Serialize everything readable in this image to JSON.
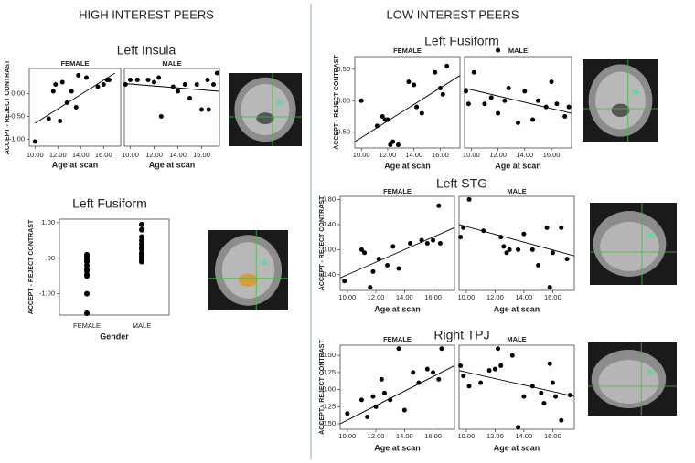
{
  "sections": [
    "HIGH INTEREST PEERS",
    "LOW INTEREST PEERS"
  ],
  "chart_data": [
    {
      "type": "scatter",
      "title": "Left Insula",
      "ylabel": "ACCEPT - REJECT CONTRAST",
      "xlabel": "Age at scan",
      "color": "#000000",
      "xlim": [
        9.5,
        17.5
      ],
      "xticks": [
        {
          "value": 10,
          "label": "10.00"
        },
        {
          "value": 12,
          "label": "12.00"
        },
        {
          "value": 14,
          "label": "14.00"
        },
        {
          "value": 16,
          "label": "16.00"
        }
      ],
      "ylim": [
        -1.15,
        0.55
      ],
      "yticks": [
        {
          "value": -1,
          "label": "-1.00"
        },
        {
          "value": -0.5,
          "label": "-0.50"
        },
        {
          "value": 0,
          "label": "0.00"
        }
      ],
      "panels": [
        {
          "name": "FEMALE",
          "x": [
            10,
            11.2,
            11.6,
            11.8,
            12.2,
            12.4,
            12.8,
            13.2,
            13.6,
            13.8,
            14.5,
            15.5,
            16,
            16.3,
            16.5
          ],
          "y": [
            -1.05,
            -0.55,
            0.05,
            0.2,
            -0.6,
            0.25,
            -0.2,
            0.05,
            -0.3,
            0.4,
            0.35,
            0.15,
            0.2,
            0.3,
            0.3
          ],
          "fit": {
            "x": [
              10,
              17
            ],
            "y": [
              -0.65,
              0.45
            ]
          }
        },
        {
          "name": "MALE",
          "x": [
            9.6,
            10,
            10.6,
            11.5,
            12,
            12.4,
            12.6,
            13.6,
            14,
            14.6,
            15,
            15.6,
            16,
            16.5,
            16.6,
            17,
            17.3
          ],
          "y": [
            0.2,
            0.3,
            0.3,
            0.3,
            0.25,
            0.35,
            -0.5,
            0.15,
            0.05,
            0.2,
            -0.1,
            0.2,
            -0.35,
            0.3,
            -0.35,
            0.2,
            0.45
          ],
          "fit": {
            "x": [
              9.5,
              17.5
            ],
            "y": [
              0.22,
              0.05
            ]
          }
        }
      ]
    },
    {
      "type": "strip",
      "title": "Left Fusiform",
      "ylabel": "ACCEPT - REJECT CONTRAST",
      "xlabel": "Gender",
      "color": "#000000",
      "categories": [
        "FEMALE",
        "MALE"
      ],
      "values": [
        [
          0.1,
          0.05,
          0,
          -0.05,
          -0.1,
          -0.2,
          -0.3,
          -0.35,
          -0.45,
          -0.5,
          -1,
          -1.55
        ],
        [
          0.95,
          0.8,
          0.6,
          0.5,
          0.4,
          0.3,
          0.25,
          0.15,
          0.1,
          0.05,
          0,
          -0.05,
          -0.1
        ]
      ],
      "ylim": [
        -1.6,
        1.1
      ],
      "yticks": [
        {
          "value": -1,
          "label": "-1.00"
        },
        {
          "value": 0,
          "label": ".00"
        },
        {
          "value": 1,
          "label": "1.00"
        }
      ]
    },
    {
      "type": "scatter",
      "title": "Left Fusiform",
      "ylabel": "ACCEPT - REJECT CONTRAST",
      "xlabel": "Age at scan",
      "color": "#000000",
      "xlim": [
        9.5,
        17.5
      ],
      "xticks": [
        {
          "value": 10,
          "label": "10.00"
        },
        {
          "value": 12,
          "label": "12.00"
        },
        {
          "value": 14,
          "label": "14.00"
        },
        {
          "value": 16,
          "label": "16.00"
        }
      ],
      "ylim": [
        -0.75,
        0.7
      ],
      "yticks": [
        {
          "value": -0.5,
          "label": "-0.50"
        },
        {
          "value": 0,
          "label": "0.00"
        },
        {
          "value": 0.5,
          "label": "0.50"
        }
      ],
      "panels": [
        {
          "name": "FEMALE",
          "x": [
            10,
            11.2,
            11.6,
            11.8,
            12,
            12.2,
            12.4,
            12.8,
            13.6,
            14,
            14.2,
            14.6,
            15.6,
            16,
            16.2,
            16.5
          ],
          "y": [
            0,
            -0.4,
            -0.25,
            -0.3,
            -0.3,
            -0.7,
            -0.65,
            -0.7,
            0.3,
            0.25,
            -0.1,
            -0.2,
            0.45,
            0.2,
            0.1,
            0.55
          ],
          "fit": {
            "x": [
              9.5,
              17.5
            ],
            "y": [
              -0.65,
              0.4
            ]
          }
        },
        {
          "name": "MALE",
          "x": [
            9.6,
            9.8,
            10.2,
            11,
            11.5,
            12,
            12,
            12.5,
            12.8,
            13.5,
            14,
            14.6,
            15,
            15.6,
            16,
            16.4,
            17,
            17.3
          ],
          "y": [
            0.15,
            -0.05,
            0.45,
            -0.05,
            0.05,
            0.8,
            -0.2,
            0,
            0.2,
            -0.35,
            0.15,
            -0.3,
            0,
            -0.1,
            0.3,
            -0.05,
            -0.25,
            -0.1
          ],
          "fit": {
            "x": [
              9.5,
              17.5
            ],
            "y": [
              0.2,
              -0.2
            ]
          }
        }
      ]
    },
    {
      "type": "scatter",
      "title": "Left STG",
      "ylabel": "ACCEPT - REJECT CONTRAST",
      "xlabel": "Age at scan",
      "color": "#000000",
      "xlim": [
        9.5,
        17.5
      ],
      "xticks": [
        {
          "value": 10,
          "label": "10.00"
        },
        {
          "value": 12,
          "label": "12.00"
        },
        {
          "value": 14,
          "label": "14.00"
        },
        {
          "value": 16,
          "label": "16.00"
        }
      ],
      "ylim": [
        -0.65,
        0.85
      ],
      "yticks": [
        {
          "value": -0.4,
          "label": "-0.40"
        },
        {
          "value": 0,
          "label": "0.00"
        },
        {
          "value": 0.4,
          "label": "0.40"
        },
        {
          "value": 0.8,
          "label": "0.80"
        }
      ],
      "panels": [
        {
          "name": "FEMALE",
          "x": [
            9.8,
            11,
            11.2,
            11.6,
            11.8,
            12.2,
            12.8,
            13.2,
            13.6,
            14.4,
            15.2,
            15.6,
            16,
            16.4,
            16.5
          ],
          "y": [
            -0.5,
            0,
            -0.05,
            -0.6,
            -0.35,
            -0.15,
            -0.25,
            0.05,
            -0.3,
            0.1,
            0.15,
            0.1,
            0.15,
            0.7,
            0.1
          ],
          "fit": {
            "x": [
              9.5,
              17.5
            ],
            "y": [
              -0.45,
              0.35
            ]
          }
        },
        {
          "name": "MALE",
          "x": [
            9.6,
            9.8,
            10.2,
            11.2,
            12.4,
            12.6,
            12.8,
            13,
            13.6,
            14,
            14.6,
            15,
            15.6,
            15.8,
            16,
            16.6,
            17
          ],
          "y": [
            0.2,
            0.35,
            0.8,
            0.3,
            0.2,
            0.05,
            -0.05,
            0,
            0,
            0.25,
            0,
            -0.25,
            0.35,
            -0.6,
            -0.05,
            0.35,
            -0.15
          ],
          "fit": {
            "x": [
              9.5,
              17.5
            ],
            "y": [
              0.4,
              -0.1
            ]
          }
        }
      ]
    },
    {
      "type": "scatter",
      "title": "Right TPJ",
      "ylabel": "ACCEPT - REJECT CONTRAST",
      "xlabel": "Age at scan",
      "color": "#000000",
      "xlim": [
        9.5,
        17.5
      ],
      "xticks": [
        {
          "value": 10,
          "label": "10.00"
        },
        {
          "value": 12,
          "label": "12.00"
        },
        {
          "value": 14,
          "label": "14.00"
        },
        {
          "value": 16,
          "label": "16.00"
        }
      ],
      "ylim": [
        -0.58,
        0.65
      ],
      "yticks": [
        {
          "value": -0.5,
          "label": "-0.50"
        },
        {
          "value": -0.25,
          "label": "-0.25"
        },
        {
          "value": 0,
          "label": "0.00"
        },
        {
          "value": 0.25,
          "label": "0.25"
        },
        {
          "value": 0.5,
          "label": "0.50"
        }
      ],
      "panels": [
        {
          "name": "FEMALE",
          "x": [
            10,
            11,
            11.4,
            11.8,
            12,
            12.4,
            12.6,
            13,
            13.6,
            14,
            14.6,
            15,
            15.6,
            16,
            16.4,
            16.6
          ],
          "y": [
            -0.35,
            -0.15,
            -0.4,
            -0.1,
            -0.25,
            0.15,
            -0.05,
            -0.15,
            0.6,
            -0.3,
            0.25,
            0.1,
            0.3,
            0.25,
            0.15,
            0.6
          ],
          "fit": {
            "x": [
              9.5,
              17.5
            ],
            "y": [
              -0.5,
              0.35
            ]
          }
        },
        {
          "name": "MALE",
          "x": [
            9.6,
            9.8,
            10.2,
            11,
            11.6,
            12,
            12.2,
            12.4,
            13.2,
            13.6,
            14,
            14.6,
            15.2,
            15.4,
            15.8,
            16,
            16.2,
            16.6,
            17.2
          ],
          "y": [
            0.35,
            0.2,
            0.05,
            0.1,
            0.28,
            0.3,
            0.6,
            0.35,
            0.5,
            -0.55,
            -0.1,
            0.05,
            -0.05,
            -0.2,
            0.38,
            0.1,
            -0.1,
            -0.45,
            -0.08
          ],
          "fit": {
            "x": [
              9.5,
              17.5
            ],
            "y": [
              0.28,
              -0.1
            ]
          }
        }
      ]
    }
  ]
}
